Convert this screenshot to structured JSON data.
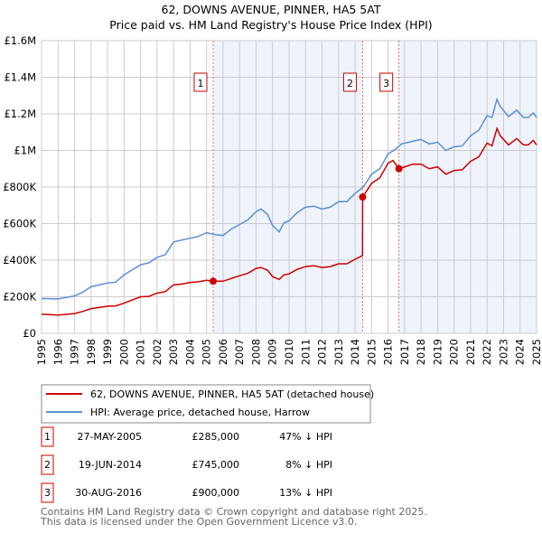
{
  "chart_data": {
    "type": "line",
    "title": "62, DOWNS AVENUE, PINNER, HA5 5AT",
    "subtitle": "Price paid vs. HM Land Registry's House Price Index (HPI)",
    "xlim": [
      1995,
      2025
    ],
    "ylim": [
      0,
      1600000
    ],
    "x_ticks": [
      "1995",
      "1996",
      "1997",
      "1998",
      "1999",
      "2000",
      "2001",
      "2002",
      "2003",
      "2004",
      "2005",
      "2006",
      "2007",
      "2008",
      "2009",
      "2010",
      "2011",
      "2012",
      "2013",
      "2014",
      "2015",
      "2016",
      "2017",
      "2018",
      "2019",
      "2020",
      "2021",
      "2022",
      "2023",
      "2024",
      "2025"
    ],
    "y_ticks": [
      {
        "value": 0,
        "label": "£0"
      },
      {
        "value": 200000,
        "label": "£200K"
      },
      {
        "value": 400000,
        "label": "£400K"
      },
      {
        "value": 600000,
        "label": "£600K"
      },
      {
        "value": 800000,
        "label": "£800K"
      },
      {
        "value": 1000000,
        "label": "£1M"
      },
      {
        "value": 1200000,
        "label": "£1.2M"
      },
      {
        "value": 1400000,
        "label": "£1.4M"
      },
      {
        "value": 1600000,
        "label": "£1.6M"
      }
    ],
    "grid": true,
    "colors": {
      "price": "#cc0000",
      "hpi": "#5b8fd6",
      "shade": "#eef3fc",
      "marker_border": "#cc0000"
    },
    "shaded_ranges": [
      [
        2005.4,
        2014.46
      ],
      [
        2016.66,
        2025
      ]
    ],
    "series": [
      {
        "name": "62, DOWNS AVENUE, PINNER, HA5 5AT (detached house)",
        "key": "price",
        "x": [
          1995,
          1996,
          1997,
          1997.5,
          1998,
          1999,
          1999.5,
          2000,
          2001,
          2001.5,
          2002,
          2002.5,
          2003,
          2003.5,
          2004,
          2004.5,
          2005,
          2005.4,
          2006,
          2006.5,
          2007,
          2007.5,
          2008,
          2008.3,
          2008.7,
          2009,
          2009.4,
          2009.7,
          2010,
          2010.5,
          2011,
          2011.5,
          2012,
          2012.5,
          2013,
          2013.5,
          2014,
          2014.45,
          2014.46,
          2015,
          2015.5,
          2016,
          2016.3,
          2016.66,
          2017,
          2017.5,
          2018,
          2018.5,
          2019,
          2019.5,
          2020,
          2020.5,
          2021,
          2021.5,
          2022,
          2022.3,
          2022.6,
          2022.8,
          2023.3,
          2023.8,
          2024.2,
          2024.5,
          2024.8,
          2025
        ],
        "y": [
          105000,
          100000,
          108000,
          120000,
          135000,
          148000,
          150000,
          165000,
          200000,
          202000,
          220000,
          228000,
          265000,
          270000,
          278000,
          282000,
          290000,
          285000,
          285000,
          300000,
          315000,
          328000,
          355000,
          360000,
          345000,
          310000,
          295000,
          320000,
          325000,
          350000,
          365000,
          370000,
          360000,
          365000,
          380000,
          380000,
          405000,
          425000,
          745000,
          820000,
          850000,
          930000,
          945000,
          900000,
          910000,
          925000,
          925000,
          900000,
          910000,
          870000,
          890000,
          895000,
          940000,
          965000,
          1040000,
          1025000,
          1120000,
          1080000,
          1030000,
          1065000,
          1030000,
          1030000,
          1055000,
          1030000
        ]
      },
      {
        "name": "HPI: Average price, detached house, Harrow",
        "key": "hpi",
        "x": [
          1995,
          1996,
          1997,
          1997.5,
          1998,
          1999,
          1999.5,
          2000,
          2001,
          2001.5,
          2002,
          2002.5,
          2003,
          2003.5,
          2004,
          2004.5,
          2005,
          2005.5,
          2006,
          2006.5,
          2007,
          2007.5,
          2008,
          2008.3,
          2008.7,
          2009,
          2009.4,
          2009.7,
          2010,
          2010.5,
          2011,
          2011.5,
          2012,
          2012.5,
          2013,
          2013.5,
          2014,
          2014.5,
          2015,
          2015.5,
          2016,
          2016.5,
          2016.8,
          2017.5,
          2018,
          2018.5,
          2019,
          2019.5,
          2020,
          2020.5,
          2021,
          2021.5,
          2022,
          2022.3,
          2022.6,
          2022.8,
          2023.3,
          2023.8,
          2024.2,
          2024.5,
          2024.8,
          2025
        ],
        "y": [
          190000,
          188000,
          205000,
          225000,
          255000,
          275000,
          280000,
          320000,
          375000,
          385000,
          415000,
          430000,
          500000,
          510000,
          520000,
          530000,
          550000,
          540000,
          535000,
          570000,
          595000,
          620000,
          665000,
          680000,
          650000,
          590000,
          555000,
          605000,
          615000,
          660000,
          690000,
          695000,
          680000,
          690000,
          720000,
          720000,
          765000,
          800000,
          870000,
          900000,
          980000,
          1010000,
          1035000,
          1050000,
          1060000,
          1035000,
          1045000,
          1000000,
          1020000,
          1025000,
          1080000,
          1110000,
          1190000,
          1180000,
          1280000,
          1240000,
          1185000,
          1220000,
          1180000,
          1180000,
          1205000,
          1180000
        ]
      }
    ],
    "sales": [
      {
        "num": "1",
        "date": "27-MAY-2005",
        "price": "£285,000",
        "hpi_diff": "47% ↓ HPI",
        "x": 2005.4,
        "y": 285000
      },
      {
        "num": "2",
        "date": "19-JUN-2014",
        "price": "£745,000",
        "hpi_diff": "8% ↓ HPI",
        "x": 2014.46,
        "y": 745000
      },
      {
        "num": "3",
        "date": "30-AUG-2016",
        "price": "£900,000",
        "hpi_diff": "13% ↓ HPI",
        "x": 2016.66,
        "y": 900000
      }
    ],
    "legend_position": "below"
  },
  "footer": {
    "line1": "Contains HM Land Registry data © Crown copyright and database right 2025.",
    "line2": "This data is licensed under the Open Government Licence v3.0."
  }
}
